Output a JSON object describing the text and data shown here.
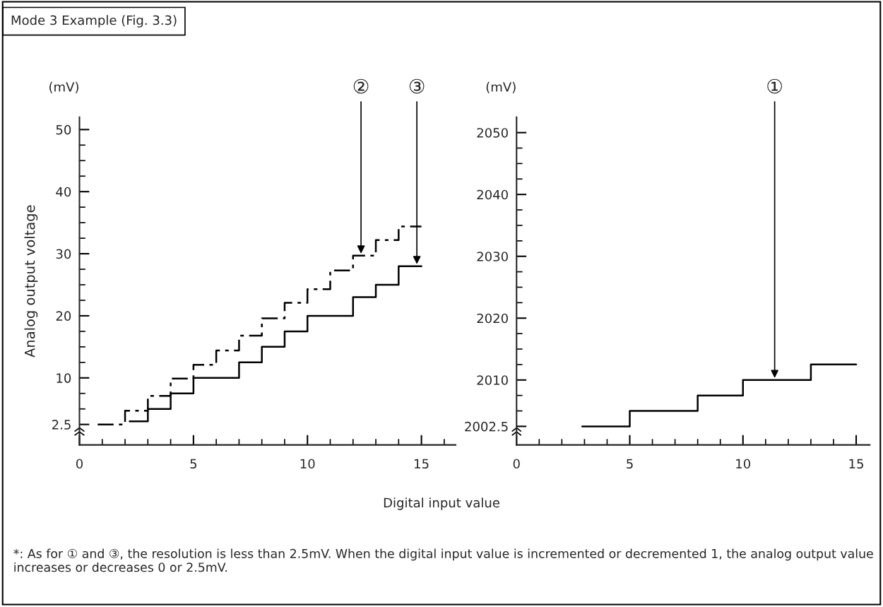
{
  "chart_data": [
    {
      "type": "step",
      "title": "Mode 3 Example (Fig. 3.3)",
      "xlabel": "Digital input value",
      "ylabel": "Analog output voltage",
      "xlim": [
        0,
        16.5
      ],
      "ylim": [
        -0.8,
        52
      ],
      "xticks": [
        0,
        {
          "value": 1,
          "label": null
        },
        {
          "value": 2,
          "label": null
        },
        {
          "value": 3,
          "label": null
        },
        {
          "value": 4,
          "label": null
        },
        5,
        {
          "value": 6,
          "label": null
        },
        {
          "value": 7,
          "label": null
        },
        {
          "value": 8,
          "label": null
        },
        {
          "value": 9,
          "label": null
        },
        10,
        {
          "value": 11,
          "label": null
        },
        {
          "value": 12,
          "label": null
        },
        {
          "value": 13,
          "label": null
        },
        {
          "value": 14,
          "label": null
        },
        15,
        {
          "value": 16,
          "label": null
        }
      ],
      "yticks": [
        2.5,
        {
          "value": 5,
          "label": null
        },
        {
          "value": 7.5,
          "label": null
        },
        10,
        {
          "value": 12.5,
          "label": null
        },
        {
          "value": 15,
          "label": null
        },
        {
          "value": 17.5,
          "label": null
        },
        20,
        {
          "value": 22.5,
          "label": null
        },
        {
          "value": 25,
          "label": null
        },
        {
          "value": 27.5,
          "label": null
        },
        30,
        {
          "value": 32.5,
          "label": null
        },
        {
          "value": 35,
          "label": null
        },
        {
          "value": 37.5,
          "label": null
        },
        40,
        {
          "value": 42.5,
          "label": null
        },
        {
          "value": 45,
          "label": null
        },
        {
          "value": 47.5,
          "label": null
        },
        50
      ],
      "series": [
        {
          "color": "#000000",
          "line_style": "dashed",
          "x": [
            0.8,
            2,
            3,
            4,
            5,
            6,
            7,
            8,
            9,
            10,
            11,
            12,
            13,
            14,
            15
          ],
          "values": [
            2.5,
            4.7,
            7.1,
            9.9,
            12.1,
            14.4,
            16.8,
            19.6,
            22.1,
            24.3,
            27.3,
            29.7,
            32.2,
            34.4,
            34.4
          ]
        },
        {
          "color": "#000000",
          "line_style": "solid",
          "x": [
            2.2,
            3,
            4,
            5,
            7,
            8,
            9,
            10,
            12,
            13,
            14,
            15
          ],
          "values": [
            3,
            5,
            7.5,
            10,
            12.5,
            15,
            17.5,
            20,
            23,
            25,
            28,
            28
          ]
        }
      ],
      "annotations": [
        {
          "text": "(mV)"
        },
        {
          "text": "②",
          "x": 12.35,
          "y": 29.7
        },
        {
          "text": "③",
          "x": 14.8,
          "y": 28
        }
      ]
    },
    {
      "type": "step",
      "ylabel": null,
      "xlim": [
        0,
        15.6
      ],
      "ylim": [
        1999.5,
        2052.5
      ],
      "xticks": [
        0,
        {
          "value": 1,
          "label": null
        },
        {
          "value": 2,
          "label": null
        },
        {
          "value": 3,
          "label": null
        },
        {
          "value": 4,
          "label": null
        },
        5,
        {
          "value": 6,
          "label": null
        },
        {
          "value": 7,
          "label": null
        },
        {
          "value": 8,
          "label": null
        },
        {
          "value": 9,
          "label": null
        },
        10,
        {
          "value": 11,
          "label": null
        },
        {
          "value": 12,
          "label": null
        },
        {
          "value": 13,
          "label": null
        },
        {
          "value": 14,
          "label": null
        },
        15
      ],
      "yticks": [
        2002.5,
        {
          "value": 2005,
          "label": null
        },
        {
          "value": 2007.5,
          "label": null
        },
        2010,
        {
          "value": 2012.5,
          "label": null
        },
        {
          "value": 2015,
          "label": null
        },
        {
          "value": 2017.5,
          "label": null
        },
        2020,
        {
          "value": 2022.5,
          "label": null
        },
        {
          "value": 2025,
          "label": null
        },
        {
          "value": 2027.5,
          "label": null
        },
        2030,
        {
          "value": 2032.5,
          "label": null
        },
        {
          "value": 2035,
          "label": null
        },
        {
          "value": 2037.5,
          "label": null
        },
        2040,
        {
          "value": 2042.5,
          "label": null
        },
        {
          "value": 2045,
          "label": null
        },
        {
          "value": 2047.5,
          "label": null
        },
        2050
      ],
      "series": [
        {
          "color": "#000000",
          "line_style": "solid",
          "x": [
            2.9,
            5,
            8,
            10,
            13,
            15
          ],
          "values": [
            2002.5,
            2005,
            2007.5,
            2010,
            2012.5,
            2012.5
          ]
        }
      ],
      "annotations": [
        {
          "text": "(mV)"
        },
        {
          "text": "①",
          "x": 11.4,
          "y": 2010
        },
        "*: As for ① and ③, the resolution is less than 2.5mV. When the digital input value is incremented or decremented 1, the analog output value increases or decreases 0 or 2.5mV."
      ]
    }
  ]
}
